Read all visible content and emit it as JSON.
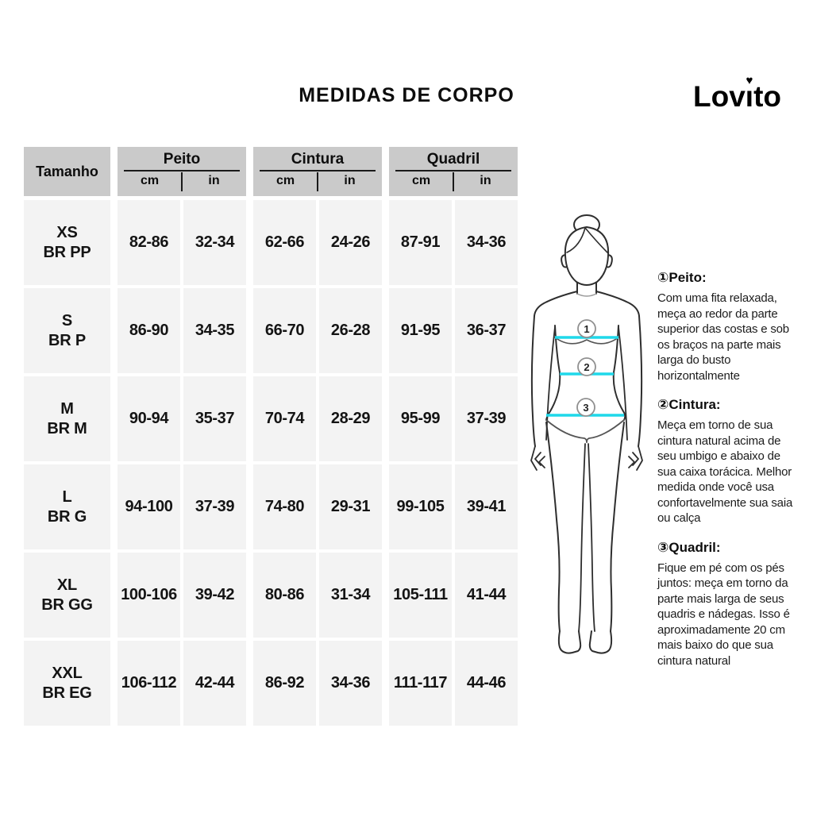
{
  "page": {
    "title": "MEDIDAS DE CORPO"
  },
  "logo": {
    "pre": "Lov",
    "i": "i",
    "post": "to",
    "heart": "♥"
  },
  "table": {
    "size_header": "Tamanho",
    "groups": [
      {
        "label": "Peito",
        "units": [
          "cm",
          "in"
        ]
      },
      {
        "label": "Cintura",
        "units": [
          "cm",
          "in"
        ]
      },
      {
        "label": "Quadril",
        "units": [
          "cm",
          "in"
        ]
      }
    ],
    "rows": [
      {
        "size": [
          "XS",
          "BR PP"
        ],
        "values": [
          "82-86",
          "32-34",
          "62-66",
          "24-26",
          "87-91",
          "34-36"
        ]
      },
      {
        "size": [
          "S",
          "BR P"
        ],
        "values": [
          "86-90",
          "34-35",
          "66-70",
          "26-28",
          "91-95",
          "36-37"
        ]
      },
      {
        "size": [
          "M",
          "BR M"
        ],
        "values": [
          "90-94",
          "35-37",
          "70-74",
          "28-29",
          "95-99",
          "37-39"
        ]
      },
      {
        "size": [
          "L",
          "BR G"
        ],
        "values": [
          "94-100",
          "37-39",
          "74-80",
          "29-31",
          "99-105",
          "39-41"
        ]
      },
      {
        "size": [
          "XL",
          "BR GG"
        ],
        "values": [
          "100-106",
          "39-42",
          "80-86",
          "31-34",
          "105-111",
          "41-44"
        ]
      },
      {
        "size": [
          "XXL",
          "BR EG"
        ],
        "values": [
          "106-112",
          "42-44",
          "86-92",
          "34-36",
          "111-117",
          "44-46"
        ]
      }
    ]
  },
  "figure": {
    "markers": [
      "1",
      "2",
      "3"
    ]
  },
  "instructions": [
    {
      "heading": "①Peito:",
      "body": "Com uma fita relaxada, meça ao redor da parte superior das costas e sob os braços na parte mais larga do busto horizontalmente"
    },
    {
      "heading": "②Cintura:",
      "body": "Meça em torno de sua cintura natural acima de seu umbigo e abaixo de sua caixa torácica. Melhor medida onde você usa confortavelmente sua saia ou calça"
    },
    {
      "heading": "③Quadril:",
      "body": "Fique em pé com os pés juntos: meça em torno da parte mais larga de seus quadris e nádegas. Isso é aproximadamente 20 cm mais baixo do que sua cintura natural"
    }
  ],
  "colors": {
    "header_bg": "#cacaca",
    "cell_bg": "#f3f3f3",
    "accent_cyan": "#1fd8ea",
    "figure_stroke": "#2e2e2e",
    "marker_circle": "#909090"
  }
}
